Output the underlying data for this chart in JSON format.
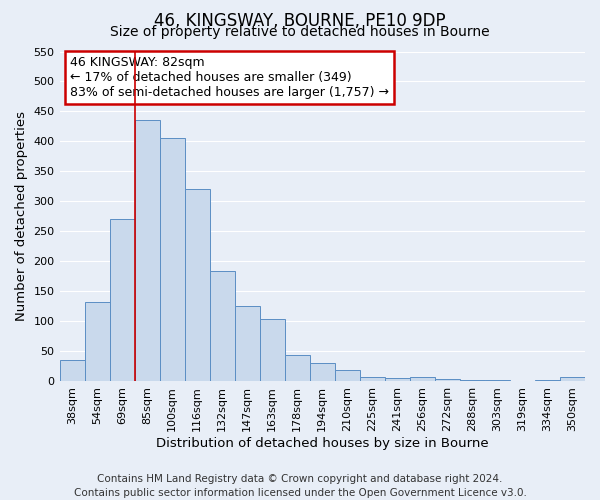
{
  "title": "46, KINGSWAY, BOURNE, PE10 9DP",
  "subtitle": "Size of property relative to detached houses in Bourne",
  "xlabel": "Distribution of detached houses by size in Bourne",
  "ylabel": "Number of detached properties",
  "categories": [
    "38sqm",
    "54sqm",
    "69sqm",
    "85sqm",
    "100sqm",
    "116sqm",
    "132sqm",
    "147sqm",
    "163sqm",
    "178sqm",
    "194sqm",
    "210sqm",
    "225sqm",
    "241sqm",
    "256sqm",
    "272sqm",
    "288sqm",
    "303sqm",
    "319sqm",
    "334sqm",
    "350sqm"
  ],
  "values": [
    35,
    133,
    271,
    435,
    405,
    321,
    184,
    125,
    104,
    44,
    30,
    19,
    7,
    5,
    8,
    4,
    3,
    2,
    1,
    3,
    7
  ],
  "bar_color": "#c9d9ec",
  "bar_edge_color": "#5b8ec4",
  "vline_color": "#cc0000",
  "vline_x": 2.5,
  "ylim": [
    0,
    550
  ],
  "yticks": [
    0,
    50,
    100,
    150,
    200,
    250,
    300,
    350,
    400,
    450,
    500,
    550
  ],
  "annotation_title": "46 KINGSWAY: 82sqm",
  "annotation_line1": "← 17% of detached houses are smaller (349)",
  "annotation_line2": "83% of semi-detached houses are larger (1,757) →",
  "annotation_box_color": "#ffffff",
  "annotation_box_edge": "#cc0000",
  "footer1": "Contains HM Land Registry data © Crown copyright and database right 2024.",
  "footer2": "Contains public sector information licensed under the Open Government Licence v3.0.",
  "background_color": "#e8eef7",
  "grid_color": "#ffffff",
  "title_fontsize": 12,
  "subtitle_fontsize": 10,
  "axis_label_fontsize": 9.5,
  "tick_fontsize": 8,
  "annotation_fontsize": 9,
  "footer_fontsize": 7.5
}
